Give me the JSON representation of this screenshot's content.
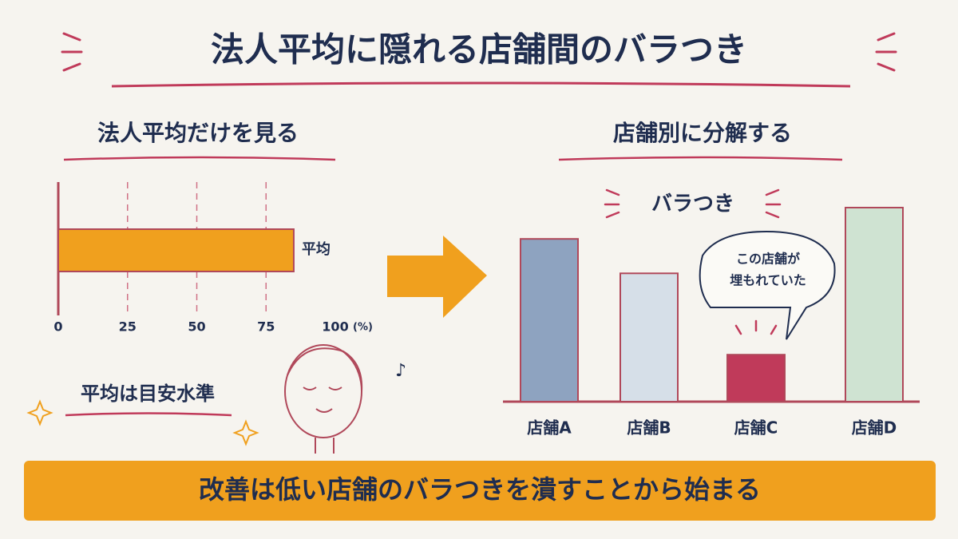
{
  "title": "法人平均に隠れる店舗間のバラつき",
  "chart_data": [
    {
      "type": "hbar",
      "title": "法人平均だけを見る",
      "categories": [
        "平均"
      ],
      "values": [
        85
      ],
      "color": "#f0a01e",
      "xlim": [
        0,
        100
      ],
      "xticks": [
        0,
        25,
        50,
        75,
        100
      ],
      "xlabel": "(%)",
      "grid": true,
      "note": "平均は目安水準"
    },
    {
      "type": "bar",
      "title": "店舗別に分解する",
      "annotation": "バラつき",
      "callout": [
        "この店舗が",
        "埋もれていた"
      ],
      "categories": [
        "店舗A",
        "店舗B",
        "店舗C",
        "店舗D"
      ],
      "values": [
        104,
        82,
        30,
        124
      ],
      "colors": [
        "#8ea3c0",
        "#d6dfe8",
        "#c03a5a",
        "#cfe3d2"
      ]
    }
  ],
  "footer": "改善は低い店舗のバラつきを潰すことから始まる"
}
